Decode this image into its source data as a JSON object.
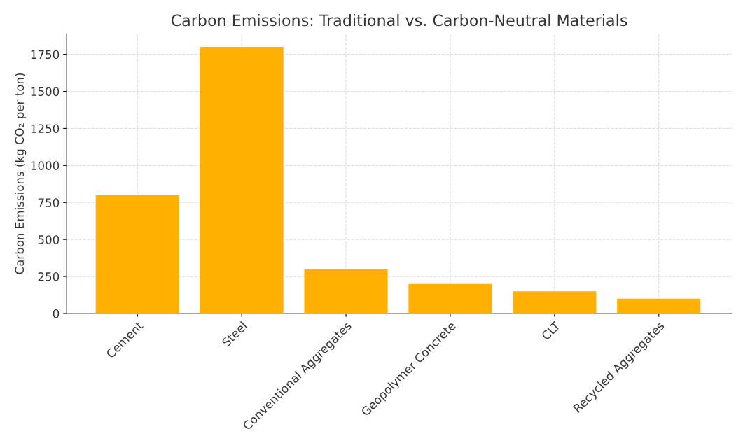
{
  "chart_data": {
    "type": "bar",
    "title": "Carbon Emissions: Traditional vs. Carbon-Neutral Materials",
    "ylabel": "Carbon Emissions (kg CO₂ per ton)",
    "categories": [
      "Cement",
      "Steel",
      "Conventional Aggregates",
      "Geopolymer Concrete",
      "CLT",
      "Recycled Aggregates"
    ],
    "values": [
      800,
      1800,
      300,
      200,
      150,
      100
    ],
    "color": "#ffb000",
    "ylim": [
      0,
      1890
    ],
    "yticks": [
      0,
      250,
      500,
      750,
      1000,
      1250,
      1500,
      1750
    ],
    "grid": true
  }
}
